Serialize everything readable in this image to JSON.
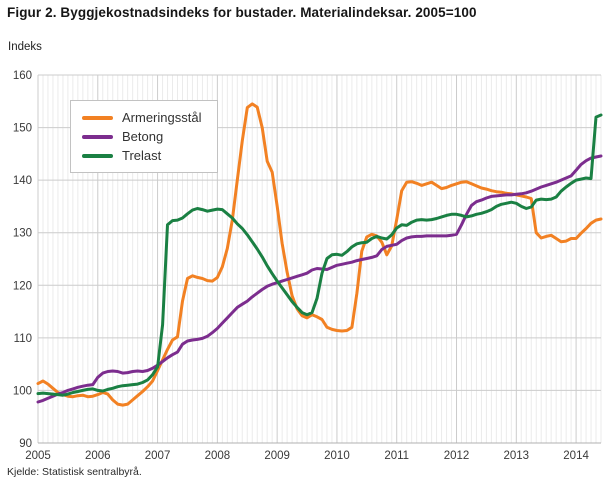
{
  "header": {
    "title": "Figur 2. Byggjekostnadsindeks for bustader. Materialindeksar. 2005=100",
    "unit_label": "Indeks"
  },
  "footer": {
    "source": "Kjelde: Statistisk sentralbyrå."
  },
  "colors": {
    "armeringsstal": "#f28123",
    "betong": "#7c2d8e",
    "trelast": "#1a8043",
    "grid_major": "#cccccc",
    "grid_minor": "#ebebeb",
    "axis_line": "#b0b0b0",
    "tick_text": "#3a3a3a"
  },
  "chart_data": {
    "type": "line",
    "title": "Figur 2. Byggjekostnadsindeks for bustader. Materialindeksar. 2005=100",
    "xlabel": "",
    "ylabel": "Indeks",
    "ylim": [
      90,
      160
    ],
    "ytick_step": 10,
    "grid": "horizontal-major-on, vertical-monthly-minor-on",
    "legend_position": "top-left-inside",
    "x_start_year": 2005,
    "x_months_per_point": 1,
    "x_ticks": [
      "2005",
      "2006",
      "2007",
      "2008",
      "2009",
      "2010",
      "2011",
      "2012",
      "2013",
      "2014"
    ],
    "series": [
      {
        "name": "Armeringsstål",
        "color": "#f28123",
        "values": [
          101.3,
          101.8,
          101.2,
          100.4,
          99.6,
          99.2,
          98.9,
          98.8,
          99.0,
          99.1,
          98.8,
          98.9,
          99.2,
          99.6,
          99.3,
          98.2,
          97.4,
          97.2,
          97.4,
          98.2,
          99.0,
          99.8,
          100.7,
          101.8,
          103.8,
          105.8,
          107.8,
          109.6,
          110.2,
          117.0,
          121.3,
          121.8,
          121.5,
          121.3,
          120.9,
          120.8,
          121.5,
          123.5,
          127.0,
          132.4,
          140.0,
          147.5,
          153.8,
          154.5,
          153.9,
          150.0,
          143.6,
          141.5,
          135.0,
          128.0,
          122.5,
          118.0,
          115.5,
          114.2,
          113.8,
          114.4,
          114.0,
          113.5,
          112.0,
          111.6,
          111.4,
          111.3,
          111.4,
          112.0,
          118.5,
          126.5,
          129.2,
          129.7,
          129.4,
          128.2,
          125.8,
          127.5,
          132.5,
          138.0,
          139.6,
          139.7,
          139.4,
          139.0,
          139.3,
          139.6,
          139.0,
          138.4,
          138.6,
          139.0,
          139.3,
          139.6,
          139.7,
          139.3,
          138.9,
          138.5,
          138.3,
          138.0,
          137.8,
          137.7,
          137.5,
          137.4,
          137.2,
          137.0,
          136.8,
          136.5,
          130.0,
          129.0,
          129.3,
          129.5,
          128.9,
          128.3,
          128.4,
          128.9,
          128.9,
          129.9,
          130.8,
          131.8,
          132.4,
          132.6
        ]
      },
      {
        "name": "Betong",
        "color": "#7c2d8e",
        "values": [
          97.8,
          98.1,
          98.5,
          98.9,
          99.3,
          99.6,
          100.0,
          100.3,
          100.6,
          100.8,
          101.0,
          101.1,
          102.5,
          103.3,
          103.6,
          103.7,
          103.6,
          103.3,
          103.4,
          103.6,
          103.7,
          103.6,
          103.8,
          104.2,
          104.8,
          105.5,
          106.2,
          106.8,
          107.3,
          108.8,
          109.4,
          109.6,
          109.7,
          109.9,
          110.3,
          111.0,
          111.8,
          112.8,
          113.8,
          114.8,
          115.8,
          116.4,
          117.0,
          117.8,
          118.5,
          119.2,
          119.8,
          120.2,
          120.5,
          120.8,
          121.1,
          121.4,
          121.7,
          122.0,
          122.3,
          122.9,
          123.2,
          123.1,
          123.0,
          123.4,
          123.8,
          124.0,
          124.2,
          124.4,
          124.7,
          124.9,
          125.1,
          125.3,
          125.6,
          126.8,
          127.4,
          127.6,
          127.8,
          128.5,
          129.0,
          129.2,
          129.3,
          129.3,
          129.4,
          129.4,
          129.4,
          129.4,
          129.4,
          129.5,
          129.7,
          131.5,
          133.5,
          135.2,
          135.9,
          136.2,
          136.6,
          136.9,
          137.0,
          137.1,
          137.2,
          137.2,
          137.3,
          137.4,
          137.6,
          137.9,
          138.3,
          138.7,
          139.0,
          139.3,
          139.6,
          140.0,
          140.4,
          140.8,
          141.9,
          143.0,
          143.7,
          144.2,
          144.4,
          144.6
        ]
      },
      {
        "name": "Trelast",
        "color": "#1a8043",
        "values": [
          99.4,
          99.5,
          99.4,
          99.3,
          99.2,
          99.1,
          99.3,
          99.6,
          99.8,
          100.0,
          100.2,
          100.3,
          100.0,
          99.9,
          100.2,
          100.4,
          100.7,
          100.9,
          101.0,
          101.1,
          101.2,
          101.5,
          102.0,
          103.0,
          104.5,
          112.5,
          131.5,
          132.3,
          132.4,
          132.8,
          133.6,
          134.3,
          134.6,
          134.4,
          134.1,
          134.3,
          134.5,
          134.4,
          133.6,
          132.8,
          131.7,
          130.8,
          129.6,
          128.3,
          126.9,
          125.4,
          123.7,
          122.2,
          120.8,
          119.5,
          118.2,
          116.9,
          115.8,
          114.8,
          114.4,
          114.8,
          117.5,
          122.3,
          125.1,
          125.8,
          125.9,
          125.7,
          126.4,
          127.3,
          127.9,
          128.1,
          128.2,
          128.9,
          129.3,
          129.0,
          128.8,
          129.6,
          130.9,
          131.5,
          131.4,
          132.0,
          132.4,
          132.5,
          132.4,
          132.5,
          132.7,
          133.0,
          133.3,
          133.5,
          133.5,
          133.3,
          133.0,
          133.2,
          133.5,
          133.7,
          134.0,
          134.4,
          135.0,
          135.4,
          135.6,
          135.8,
          135.6,
          135.0,
          134.6,
          134.9,
          136.2,
          136.4,
          136.3,
          136.4,
          136.8,
          137.9,
          138.7,
          139.4,
          140.0,
          140.2,
          140.4,
          140.3,
          152.0,
          152.4
        ]
      }
    ]
  }
}
